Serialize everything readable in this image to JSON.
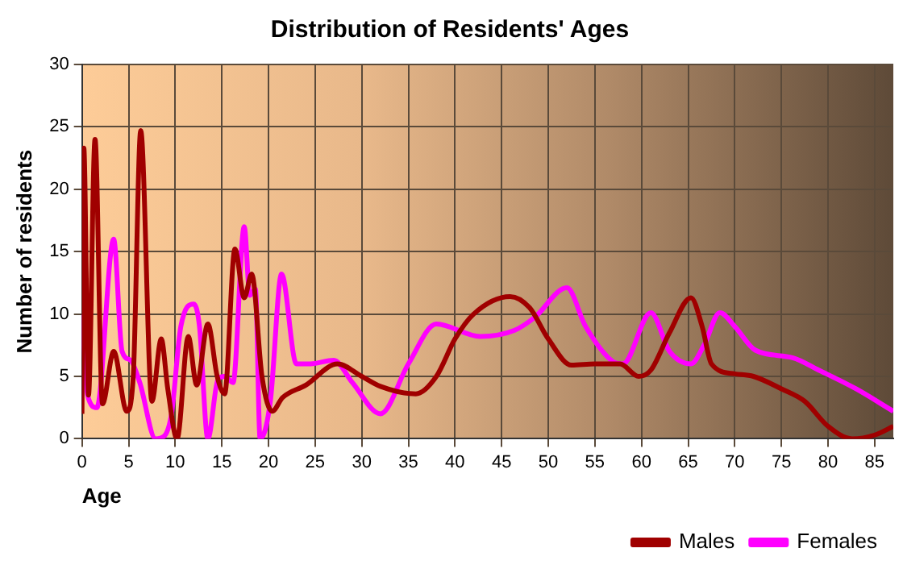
{
  "chart_data": {
    "type": "line",
    "title": "Distribution of Residents' Ages",
    "xlabel": "Age",
    "ylabel": "Number of residents",
    "xlim": [
      0,
      87
    ],
    "xticks": [
      0,
      5,
      10,
      15,
      20,
      25,
      30,
      35,
      40,
      45,
      50,
      55,
      60,
      65,
      70,
      75,
      80,
      85
    ],
    "ylim": [
      0,
      30
    ],
    "yticks": [
      0,
      5,
      10,
      15,
      20,
      25,
      30
    ],
    "grid": true,
    "legend": "bottom right",
    "marker": "none",
    "line_style": "solid",
    "series": [
      {
        "name": "Males",
        "color": "#a00000",
        "x": [
          0,
          0.2,
          0.7,
          1.4,
          2.2,
          3.4,
          4.8,
          5.5,
          6.3,
          7.5,
          8.5,
          9.2,
          10.2,
          11.4,
          12.3,
          13.5,
          14.5,
          15.3,
          16.4,
          17.4,
          18.2,
          19.3,
          20.4,
          21.5,
          24,
          27.4,
          30,
          32,
          35.8,
          38,
          40,
          42,
          45.9,
          48,
          50,
          52.5,
          55,
          57.7,
          59.7,
          61,
          63,
          65.3,
          66.5,
          67.5,
          70,
          72,
          75,
          77.5,
          80,
          82.6,
          85,
          87
        ],
        "values": [
          2,
          23.3,
          3.5,
          24,
          2.8,
          7,
          2.2,
          5,
          24.7,
          3,
          8,
          4,
          0,
          8.2,
          4.3,
          9.2,
          5,
          3.6,
          15.2,
          11.3,
          13.2,
          5,
          2.2,
          3.3,
          4.3,
          6,
          5,
          4.2,
          3.6,
          5,
          8,
          10,
          11.4,
          10.5,
          8,
          5.9,
          6,
          6,
          5,
          5.5,
          8.5,
          11.3,
          9,
          6,
          5.2,
          5,
          4,
          3,
          1,
          0,
          0.3,
          1
        ]
      },
      {
        "name": "Females",
        "color": "#ff00ff",
        "x": [
          0,
          0.6,
          1.6,
          3.4,
          4.3,
          5.2,
          6.2,
          7.9,
          8.8,
          9.6,
          10.6,
          12,
          12.6,
          13.5,
          14.6,
          15.3,
          16.2,
          17.4,
          18,
          18.6,
          19.1,
          20.2,
          21.4,
          23,
          24.5,
          27,
          29,
          32,
          35,
          38,
          42.7,
          46.4,
          48.5,
          52,
          54,
          56.9,
          58,
          61,
          63,
          65.3,
          66.7,
          68.4,
          70,
          72.2,
          76.2,
          79,
          83,
          87
        ],
        "values": [
          10,
          3.5,
          2.5,
          16,
          7,
          6.3,
          4.5,
          0,
          0.2,
          2,
          9,
          10.8,
          9,
          0,
          4.8,
          5,
          4.5,
          17,
          11.5,
          12,
          0,
          3,
          13.2,
          6,
          6,
          6.3,
          4.5,
          2,
          6,
          9.2,
          8.2,
          8.7,
          9.7,
          12.1,
          9,
          6.2,
          6,
          10.1,
          7,
          6,
          7.5,
          10.1,
          9,
          7.1,
          6.5,
          5.5,
          4,
          2.2
        ]
      }
    ]
  }
}
